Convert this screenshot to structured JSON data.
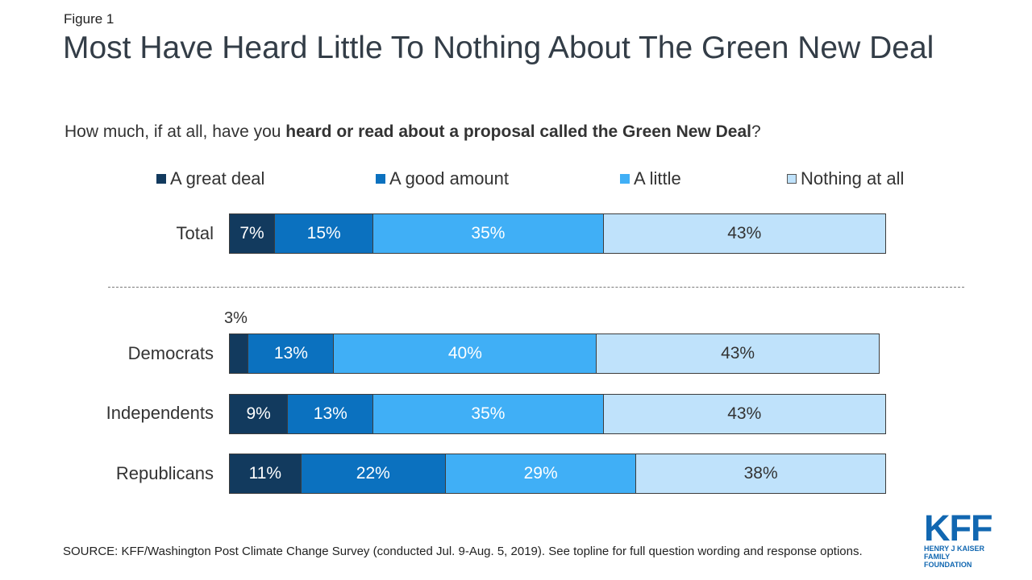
{
  "figure_label": "Figure 1",
  "title": "Most Have Heard Little To Nothing About The Green New Deal",
  "question": {
    "prefix": "How much, if at all, have you ",
    "bold": "heard or read about a proposal called the Green New Deal",
    "suffix": "?"
  },
  "colors": {
    "great_deal": "#123a5e",
    "good_amount": "#0b71bf",
    "little": "#40aff6",
    "nothing": "#bfe2fb"
  },
  "chart_data": {
    "type": "bar",
    "orientation": "horizontal",
    "stacked": true,
    "categories": [
      "Total",
      "Democrats",
      "Independents",
      "Republicans"
    ],
    "series": [
      {
        "name": "A great deal",
        "values": [
          7,
          3,
          9,
          11
        ],
        "labels": [
          "7%",
          "3%",
          "9%",
          "11%"
        ]
      },
      {
        "name": "A good amount",
        "values": [
          15,
          13,
          13,
          22
        ],
        "labels": [
          "15%",
          "13%",
          "13%",
          "22%"
        ]
      },
      {
        "name": "A little",
        "values": [
          35,
          40,
          35,
          29
        ],
        "labels": [
          "35%",
          "40%",
          "35%",
          "29%"
        ]
      },
      {
        "name": "Nothing at all",
        "values": [
          43,
          43,
          43,
          38
        ],
        "labels": [
          "43%",
          "43%",
          "43%",
          "38%"
        ]
      }
    ],
    "legend_position": "top",
    "grid": false
  },
  "source": "SOURCE: KFF/Washington Post Climate Change Survey (conducted Jul. 9-Aug. 5, 2019). See topline for full question wording and response options.",
  "logo": {
    "name": "KFF",
    "subtitle_line1": "HENRY J KAISER",
    "subtitle_line2": "FAMILY FOUNDATION"
  }
}
